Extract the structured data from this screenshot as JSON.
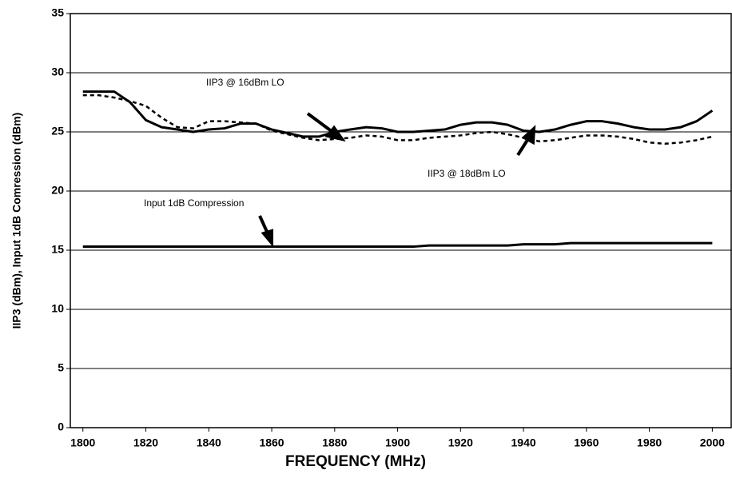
{
  "chart_data": {
    "type": "line",
    "x_label": "FREQUENCY (MHz)",
    "y_label": "IIP3 (dBm), Input 1dB Comression (dBm)",
    "x": [
      1800,
      1805,
      1810,
      1815,
      1820,
      1825,
      1830,
      1835,
      1840,
      1845,
      1850,
      1855,
      1860,
      1865,
      1870,
      1875,
      1880,
      1885,
      1890,
      1895,
      1900,
      1905,
      1910,
      1915,
      1920,
      1925,
      1930,
      1935,
      1940,
      1945,
      1950,
      1955,
      1960,
      1965,
      1970,
      1975,
      1980,
      1985,
      1990,
      1995,
      2000
    ],
    "series": [
      {
        "name": "IIP3 @ 16dBm LO",
        "color": "#000000",
        "style": "solid",
        "values": [
          28.4,
          28.4,
          28.4,
          27.5,
          26.0,
          25.4,
          25.2,
          25.0,
          25.2,
          25.3,
          25.7,
          25.7,
          25.2,
          24.9,
          24.6,
          24.6,
          25.0,
          25.2,
          25.4,
          25.3,
          25.0,
          25.0,
          25.1,
          25.2,
          25.6,
          25.8,
          25.8,
          25.6,
          25.1,
          25.0,
          25.2,
          25.6,
          25.9,
          25.9,
          25.7,
          25.4,
          25.2,
          25.2,
          25.4,
          25.9,
          26.8
        ]
      },
      {
        "name": "IIP3 @ 18dBm LO",
        "color": "#000000",
        "style": "dashed",
        "values": [
          28.1,
          28.1,
          27.9,
          27.6,
          27.2,
          26.2,
          25.4,
          25.3,
          25.9,
          25.9,
          25.8,
          25.7,
          25.1,
          24.8,
          24.5,
          24.3,
          24.4,
          24.5,
          24.7,
          24.6,
          24.3,
          24.3,
          24.5,
          24.6,
          24.7,
          24.9,
          25.0,
          24.8,
          24.5,
          24.2,
          24.3,
          24.5,
          24.7,
          24.7,
          24.6,
          24.4,
          24.1,
          24.0,
          24.1,
          24.3,
          24.6
        ]
      },
      {
        "name": "Input 1dB Compression",
        "color": "#000000",
        "style": "solid",
        "values": [
          15.3,
          15.3,
          15.3,
          15.3,
          15.3,
          15.3,
          15.3,
          15.3,
          15.3,
          15.3,
          15.3,
          15.3,
          15.3,
          15.3,
          15.3,
          15.3,
          15.3,
          15.3,
          15.3,
          15.3,
          15.3,
          15.3,
          15.4,
          15.4,
          15.4,
          15.4,
          15.4,
          15.4,
          15.5,
          15.5,
          15.5,
          15.6,
          15.6,
          15.6,
          15.6,
          15.6,
          15.6,
          15.6,
          15.6,
          15.6,
          15.6
        ]
      }
    ],
    "xlim": [
      1796,
      2006
    ],
    "xticks": [
      1800,
      1820,
      1840,
      1860,
      1880,
      1900,
      1920,
      1940,
      1960,
      1980,
      2000
    ],
    "ylim": [
      0,
      35
    ],
    "yticks": [
      0,
      5,
      10,
      15,
      20,
      25,
      30,
      35
    ],
    "grid": true,
    "annotations": [
      "IIP3 @ 16dBm LO",
      "IIP3 @ 18dBm LO",
      "Input 1dB Compression"
    ]
  }
}
